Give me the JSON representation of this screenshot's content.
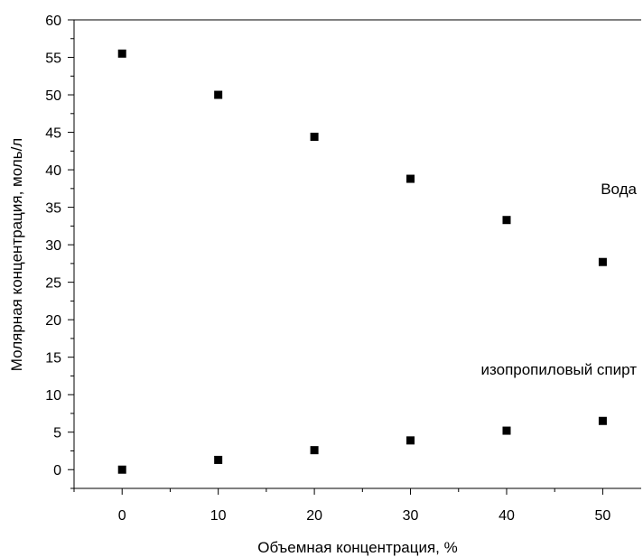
{
  "chart_data": {
    "type": "scatter",
    "title": "",
    "xlabel": "Объемная концентрация, %",
    "ylabel": "Молярная концентрация, моль/л",
    "xlim": [
      -5,
      54
    ],
    "ylim": [
      -2.5,
      60
    ],
    "x_ticks": [
      0,
      10,
      20,
      30,
      40,
      50
    ],
    "y_ticks": [
      0,
      5,
      10,
      15,
      20,
      25,
      30,
      35,
      40,
      45,
      50,
      55,
      60
    ],
    "grid": false,
    "legend": "none",
    "marker_color": "#000000",
    "series": [
      {
        "name": "Вода",
        "x": [
          0,
          10,
          20,
          30,
          40,
          50
        ],
        "y": [
          55.5,
          50.0,
          44.4,
          38.8,
          33.3,
          27.7
        ]
      },
      {
        "name": "изопропиловый спирт",
        "x": [
          0,
          10,
          20,
          30,
          40,
          50
        ],
        "y": [
          0.0,
          1.3,
          2.6,
          3.9,
          5.2,
          6.5
        ]
      }
    ],
    "annotations": [
      {
        "text": "Вода",
        "series": 0
      },
      {
        "text": "изопропиловый спирт",
        "series": 1
      }
    ]
  }
}
